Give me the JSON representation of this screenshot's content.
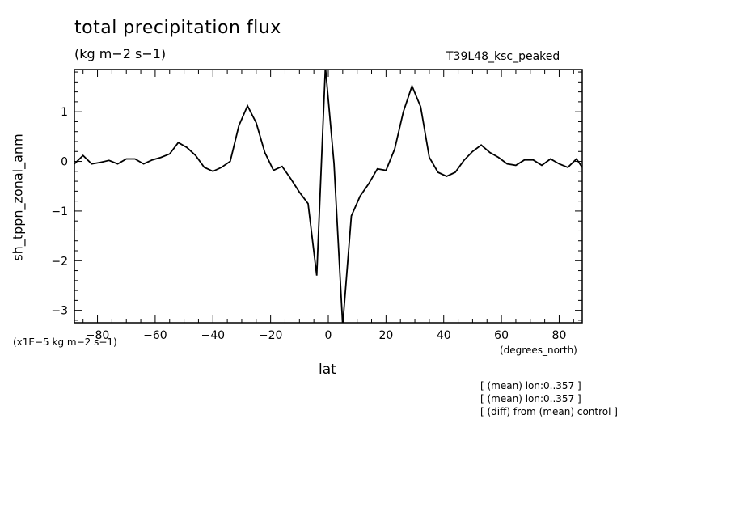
{
  "header": {
    "title": "total precipitation flux",
    "subtitle": "(kg m−2 s−1)",
    "run_label": "T39L48_ksc_peaked"
  },
  "footer": {
    "y_unit_label": "(x1E−5 kg m−2 s−1)",
    "x_units_label": "(degrees_north)",
    "notes": [
      "[ (mean) lon:0..357 ]",
      "[ (mean) lon:0..357 ]",
      "[ (diff) from (mean) control ]"
    ]
  },
  "chart_data": {
    "type": "line",
    "xlabel": "lat",
    "ylabel": "sh_tppn_zonal_anm",
    "xlim": [
      -88,
      88
    ],
    "ylim": [
      -3.25,
      1.85
    ],
    "x_ticks": [
      -80,
      -60,
      -40,
      -20,
      0,
      20,
      40,
      60,
      80
    ],
    "x_tick_labels": [
      "−80",
      "−60",
      "−40",
      "−20",
      "0",
      "20",
      "40",
      "60",
      "80"
    ],
    "y_ticks": [
      -3,
      -2,
      -1,
      0,
      1
    ],
    "y_tick_labels": [
      "−3",
      "−2",
      "−1",
      "0",
      "1"
    ],
    "line_color": "#000000",
    "series": [
      {
        "x": [
          -88,
          -85,
          -82,
          -79,
          -76,
          -73,
          -70,
          -67,
          -64,
          -61,
          -58,
          -55,
          -52,
          -49,
          -46,
          -43,
          -40,
          -37,
          -34,
          -31,
          -28,
          -25,
          -22,
          -19,
          -16,
          -13,
          -10,
          -7,
          -4,
          -1,
          2,
          5,
          8,
          11,
          14,
          17,
          20,
          23,
          26,
          29,
          32,
          35,
          38,
          41,
          44,
          47,
          50,
          53,
          56,
          59,
          62,
          65,
          68,
          71,
          74,
          77,
          80,
          83,
          86,
          88
        ],
        "y": [
          -0.05,
          0.12,
          -0.05,
          -0.02,
          0.02,
          -0.05,
          0.05,
          0.05,
          -0.05,
          0.03,
          0.08,
          0.15,
          0.38,
          0.28,
          0.12,
          -0.12,
          -0.2,
          -0.12,
          0.0,
          0.72,
          1.12,
          0.78,
          0.18,
          -0.18,
          -0.1,
          -0.35,
          -0.62,
          -0.85,
          -2.3,
          1.9,
          -0.05,
          -3.3,
          -1.1,
          -0.7,
          -0.45,
          -0.15,
          -0.18,
          0.25,
          1.0,
          1.52,
          1.1,
          0.08,
          -0.22,
          -0.3,
          -0.22,
          0.02,
          0.2,
          0.33,
          0.18,
          0.08,
          -0.05,
          -0.08,
          0.03,
          0.03,
          -0.08,
          0.05,
          -0.05,
          -0.12,
          0.05,
          -0.12
        ]
      }
    ]
  }
}
